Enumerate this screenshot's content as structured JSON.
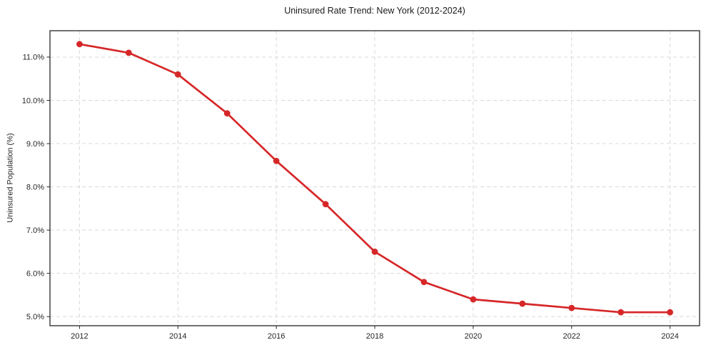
{
  "figure": {
    "title": "Uninsured Rate Trend: New York (2012-2024)",
    "ylabel": "Uninsured Population (%)"
  },
  "chart_data": {
    "type": "line",
    "title": "Uninsured Rate Trend: New York (2012-2024)",
    "xlabel": "",
    "ylabel": "Uninsured Population (%)",
    "x": [
      2012,
      2013,
      2014,
      2015,
      2016,
      2017,
      2018,
      2019,
      2020,
      2021,
      2022,
      2023,
      2024
    ],
    "values": [
      11.3,
      11.1,
      10.6,
      9.7,
      8.6,
      7.6,
      6.5,
      5.8,
      5.4,
      5.3,
      5.2,
      5.1,
      5.1
    ],
    "x_ticks": [
      2012,
      2014,
      2016,
      2018,
      2020,
      2022,
      2024
    ],
    "x_tick_labels": [
      "2012",
      "2014",
      "2016",
      "2018",
      "2020",
      "2022",
      "2024"
    ],
    "y_ticks": [
      5.0,
      6.0,
      7.0,
      8.0,
      9.0,
      10.0,
      11.0
    ],
    "y_tick_labels": [
      "5.0%",
      "6.0%",
      "7.0%",
      "8.0%",
      "9.0%",
      "10.0%",
      "11.0%"
    ],
    "xlim": [
      2011.4,
      2024.6
    ],
    "ylim": [
      4.79,
      11.61
    ],
    "grid": true,
    "grid_style": "dashed",
    "legend_position": "none",
    "line_color": "#d62728",
    "marker": "circle"
  }
}
